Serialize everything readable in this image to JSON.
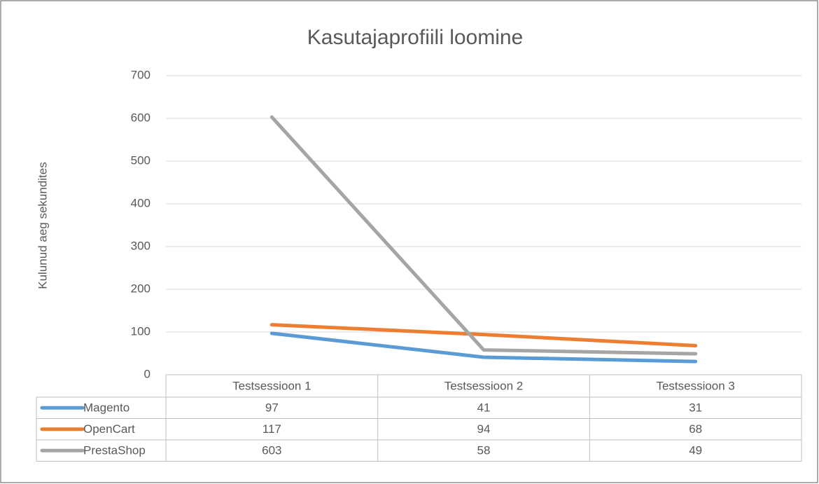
{
  "chart_data": {
    "type": "line",
    "title": "Kasutajaprofiili loomine",
    "y_label": "Kulunud aeg sekundites",
    "categories": [
      "Testsessioon 1",
      "Testsessioon 2",
      "Testsessioon 3"
    ],
    "series": [
      {
        "name": "Magento",
        "color": "#5b9bd5",
        "values": [
          97,
          41,
          31
        ]
      },
      {
        "name": "OpenCart",
        "color": "#ed7d31",
        "values": [
          117,
          94,
          68
        ]
      },
      {
        "name": "PrestaShop",
        "color": "#a5a5a5",
        "values": [
          603,
          58,
          49
        ]
      }
    ],
    "ylim": [
      0,
      700
    ],
    "yticks": [
      0,
      100,
      200,
      300,
      400,
      500,
      600,
      700
    ],
    "grid": true,
    "data_table": true
  }
}
